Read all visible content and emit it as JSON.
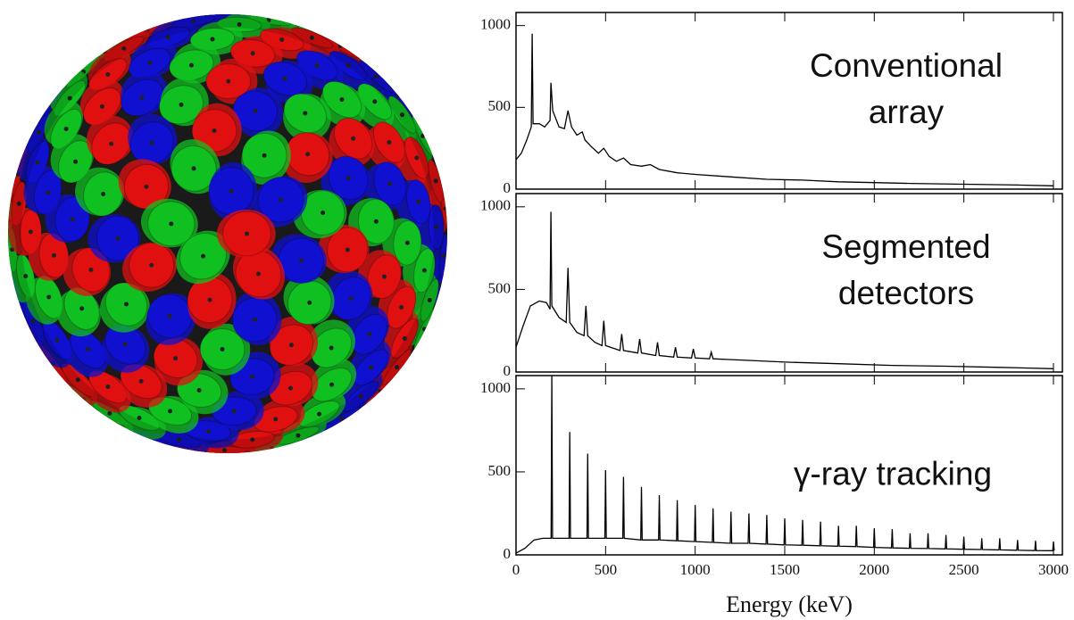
{
  "chart_data": [
    {
      "type": "line",
      "annotation": [
        "Conventional",
        "array"
      ],
      "xlim": [
        0,
        3050
      ],
      "ylim": [
        0,
        1080
      ],
      "yticks": [
        0,
        500,
        1000
      ],
      "series": [
        {
          "color": "#000000",
          "x": [
            0,
            30,
            60,
            85,
            90,
            95,
            130,
            160,
            190,
            195,
            205,
            240,
            270,
            290,
            310,
            340,
            370,
            385,
            420,
            460,
            490,
            520,
            560,
            600,
            640,
            700,
            750,
            800,
            900,
            1000,
            1200,
            1400,
            1600,
            1800,
            2000,
            2200,
            2500,
            2800,
            3000
          ],
          "values": [
            180,
            220,
            300,
            380,
            950,
            400,
            400,
            380,
            420,
            650,
            480,
            380,
            370,
            480,
            380,
            330,
            350,
            300,
            260,
            220,
            250,
            200,
            170,
            190,
            150,
            140,
            150,
            120,
            100,
            90,
            75,
            60,
            55,
            45,
            40,
            35,
            30,
            25,
            20
          ]
        }
      ]
    },
    {
      "type": "line",
      "annotation": [
        "Segmented",
        "detectors"
      ],
      "xlim": [
        0,
        3050
      ],
      "ylim": [
        0,
        1080
      ],
      "yticks": [
        0,
        500,
        1000
      ],
      "series": [
        {
          "color": "#000000",
          "x": [
            0,
            40,
            80,
            130,
            170,
            190,
            195,
            200,
            240,
            280,
            290,
            300,
            340,
            380,
            390,
            400,
            440,
            480,
            490,
            500,
            580,
            590,
            600,
            680,
            690,
            700,
            780,
            790,
            800,
            880,
            890,
            900,
            980,
            990,
            1000,
            1080,
            1090,
            1100,
            1200,
            1300,
            1500,
            1800,
            2100,
            2400,
            2700,
            3000
          ],
          "values": [
            150,
            280,
            400,
            430,
            420,
            380,
            970,
            400,
            330,
            300,
            630,
            300,
            240,
            220,
            400,
            220,
            180,
            160,
            310,
            160,
            130,
            230,
            130,
            115,
            200,
            115,
            100,
            180,
            100,
            90,
            150,
            90,
            85,
            140,
            85,
            80,
            120,
            80,
            75,
            70,
            60,
            50,
            40,
            35,
            28,
            20
          ]
        }
      ]
    },
    {
      "type": "line",
      "annotation": [
        "γ-ray tracking"
      ],
      "xlim": [
        0,
        3050
      ],
      "ylim": [
        0,
        1080
      ],
      "yticks": [
        0,
        500,
        1000
      ],
      "xticks": [
        0,
        500,
        1000,
        1500,
        2000,
        2500,
        3000
      ],
      "xlabel": "Energy (keV)",
      "series": [
        {
          "color": "#000000",
          "x": [
            0,
            50,
            100,
            150,
            196,
            200,
            204,
            296,
            300,
            304,
            396,
            400,
            404,
            496,
            500,
            504,
            596,
            600,
            604,
            696,
            700,
            704,
            796,
            800,
            804,
            896,
            900,
            904,
            996,
            1000,
            1004,
            1096,
            1100,
            1104,
            1196,
            1200,
            1204,
            1296,
            1300,
            1304,
            1396,
            1400,
            1404,
            1496,
            1500,
            1504,
            1596,
            1600,
            1604,
            1696,
            1700,
            1704,
            1796,
            1800,
            1804,
            1896,
            1900,
            1904,
            1996,
            2000,
            2004,
            2096,
            2100,
            2104,
            2196,
            2200,
            2204,
            2296,
            2300,
            2304,
            2396,
            2400,
            2404,
            2496,
            2500,
            2504,
            2596,
            2600,
            2604,
            2696,
            2700,
            2704,
            2796,
            2800,
            2804,
            2896,
            2900,
            2904,
            2996,
            3000,
            3004
          ],
          "values": [
            10,
            40,
            90,
            100,
            100,
            1080,
            100,
            100,
            740,
            100,
            100,
            610,
            100,
            100,
            510,
            100,
            100,
            470,
            100,
            90,
            410,
            90,
            90,
            360,
            90,
            85,
            330,
            85,
            80,
            300,
            80,
            75,
            280,
            75,
            70,
            260,
            70,
            70,
            250,
            70,
            65,
            240,
            65,
            60,
            220,
            60,
            58,
            210,
            58,
            55,
            200,
            55,
            52,
            175,
            52,
            50,
            175,
            50,
            45,
            160,
            45,
            42,
            155,
            42,
            40,
            130,
            40,
            38,
            130,
            38,
            36,
            120,
            36,
            34,
            110,
            34,
            32,
            100,
            32,
            30,
            100,
            30,
            28,
            90,
            28,
            26,
            85,
            26,
            25,
            80,
            25
          ]
        }
      ]
    }
  ]
}
